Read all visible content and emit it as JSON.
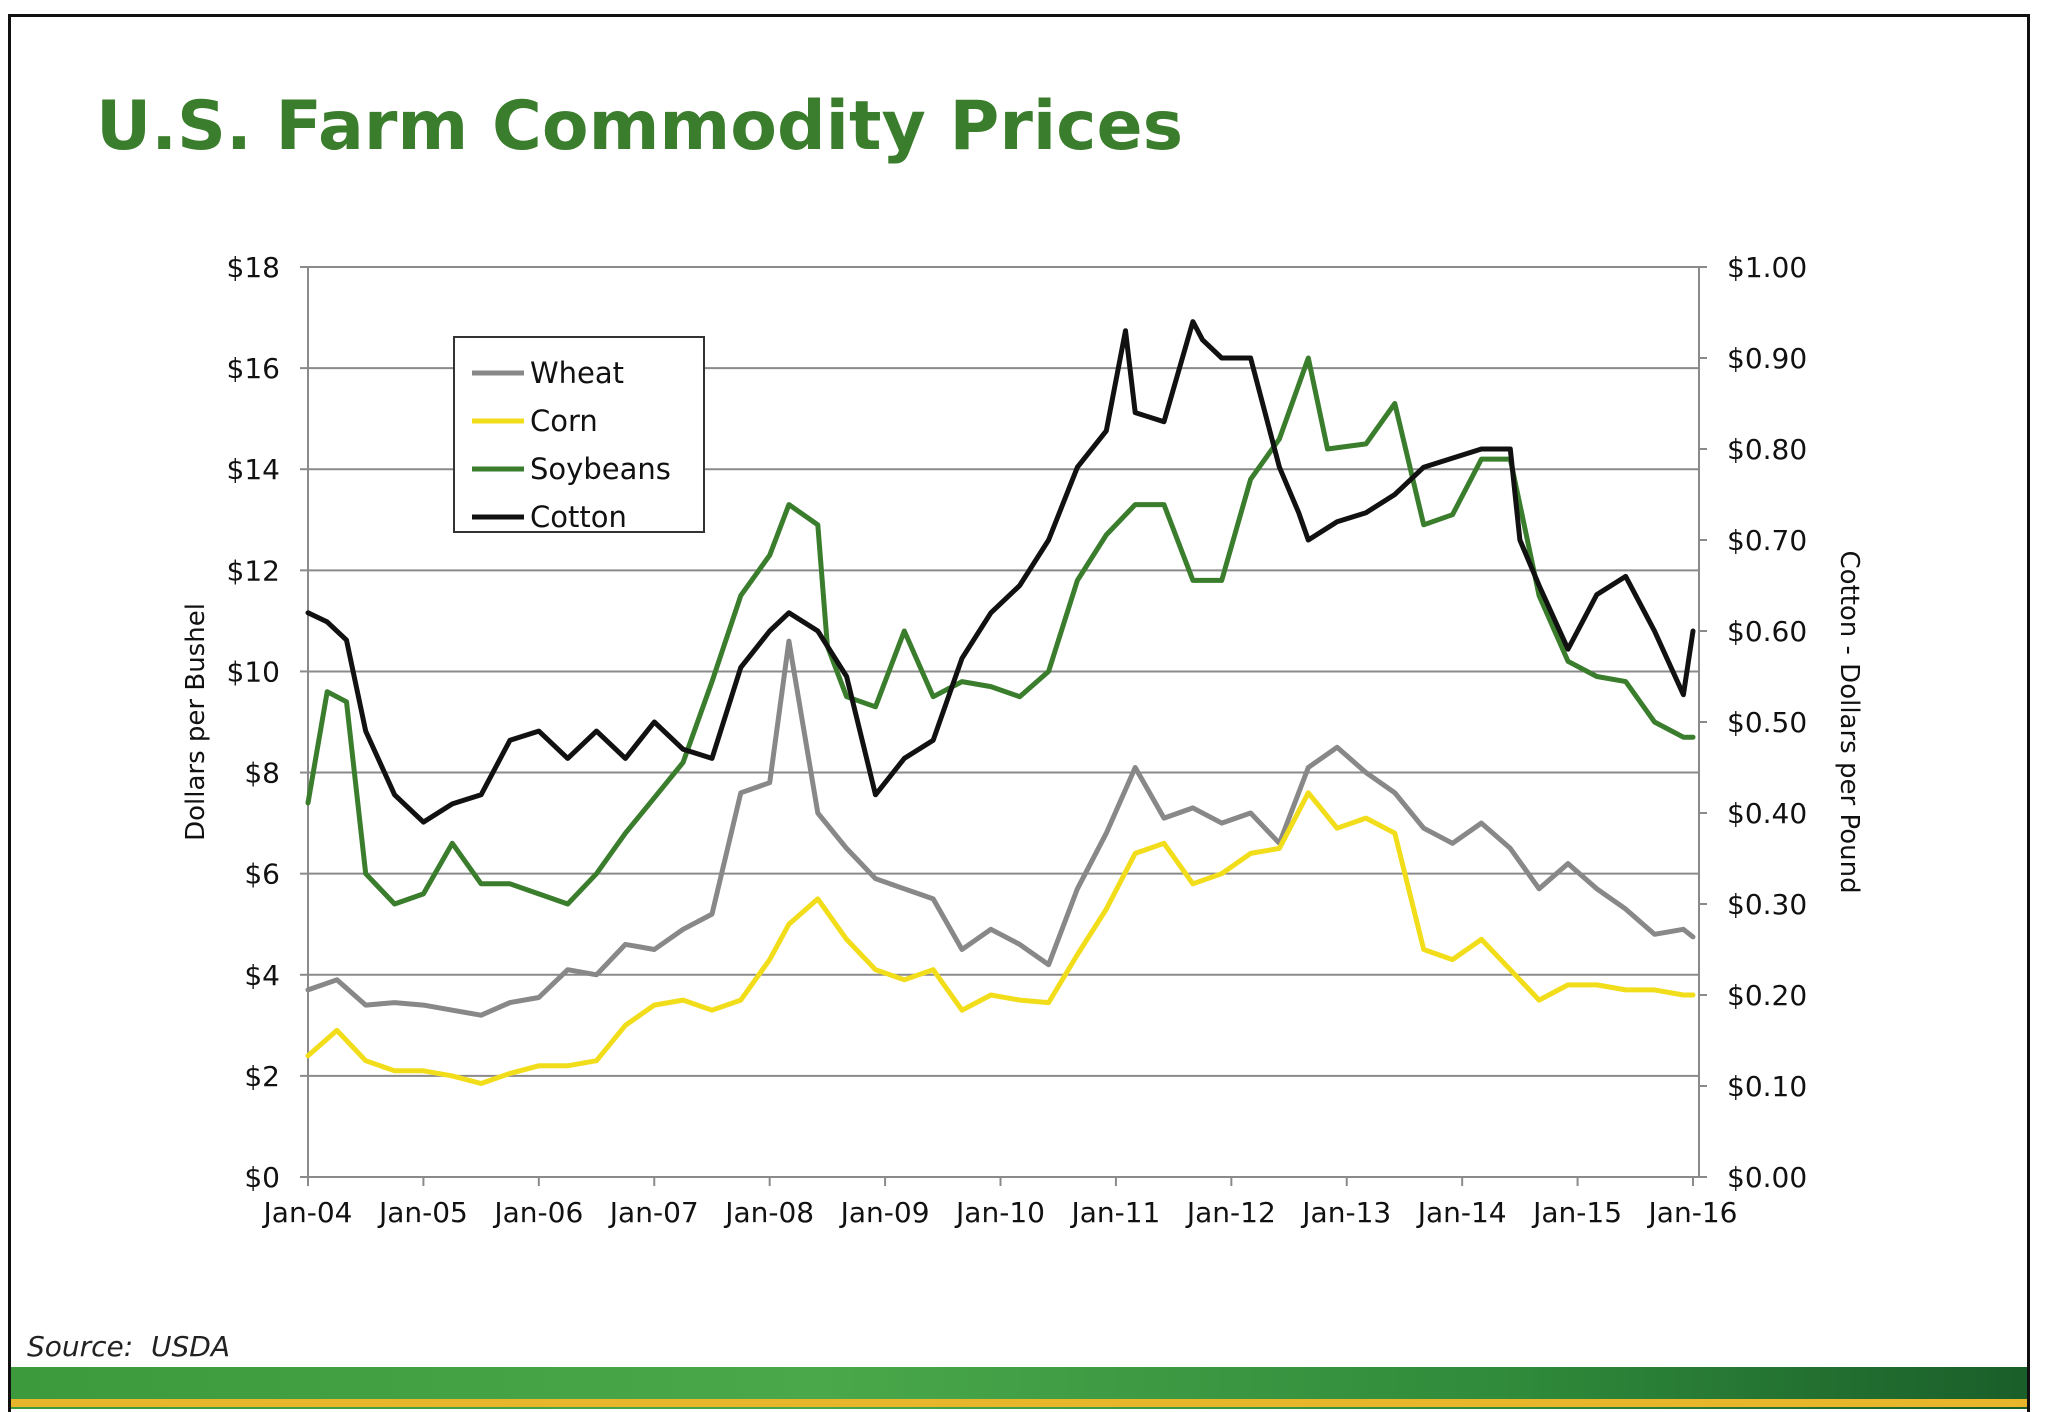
{
  "title": "U.S. Farm Commodity Prices",
  "source": "Source:  USDA",
  "colors": {
    "title": "#3a7d2c",
    "wheat": "#888888",
    "corn": "#f2dd1a",
    "soybeans": "#3a7d2c",
    "cotton": "#111111",
    "grid": "#888888"
  },
  "chart_data": {
    "type": "line",
    "title": "",
    "ylabel": "Dollars per Bushel",
    "y2label": "Cotton - Dollars per Pound",
    "ylim": [
      0,
      18
    ],
    "y2lim": [
      0,
      1.0
    ],
    "yticks": [
      "$0",
      "$2",
      "$4",
      "$6",
      "$8",
      "$10",
      "$12",
      "$14",
      "$16",
      "$18"
    ],
    "y2ticks": [
      "$0.00",
      "$0.10",
      "$0.20",
      "$0.30",
      "$0.40",
      "$0.50",
      "$0.60",
      "$0.70",
      "$0.80",
      "$0.90",
      "$1.00"
    ],
    "xticks": [
      "Jan-04",
      "Jan-05",
      "Jan-06",
      "Jan-07",
      "Jan-08",
      "Jan-09",
      "Jan-10",
      "Jan-11",
      "Jan-12",
      "Jan-13",
      "Jan-14",
      "Jan-15",
      "Jan-16"
    ],
    "xlim": [
      "2004-01",
      "2016-01"
    ],
    "grid": true,
    "legend_position": "top-left",
    "series": [
      {
        "name": "Wheat",
        "axis": "left",
        "color": "#888888",
        "x": [
          "2004-01",
          "2004-04",
          "2004-07",
          "2004-10",
          "2005-01",
          "2005-04",
          "2005-07",
          "2005-10",
          "2006-01",
          "2006-04",
          "2006-07",
          "2006-10",
          "2007-01",
          "2007-04",
          "2007-07",
          "2007-10",
          "2008-01",
          "2008-03",
          "2008-06",
          "2008-09",
          "2008-12",
          "2009-03",
          "2009-06",
          "2009-09",
          "2009-12",
          "2010-03",
          "2010-06",
          "2010-09",
          "2010-12",
          "2011-03",
          "2011-06",
          "2011-09",
          "2011-12",
          "2012-03",
          "2012-06",
          "2012-09",
          "2012-12",
          "2013-03",
          "2013-06",
          "2013-09",
          "2013-12",
          "2014-03",
          "2014-06",
          "2014-09",
          "2014-12",
          "2015-03",
          "2015-06",
          "2015-09",
          "2015-12",
          "2016-01"
        ],
        "values": [
          3.7,
          3.9,
          3.4,
          3.45,
          3.4,
          3.3,
          3.2,
          3.45,
          3.55,
          4.1,
          4.0,
          4.6,
          4.5,
          4.9,
          5.2,
          7.6,
          7.8,
          10.6,
          7.2,
          6.5,
          5.9,
          5.7,
          5.5,
          4.5,
          4.9,
          4.6,
          4.2,
          5.7,
          6.8,
          8.1,
          7.1,
          7.3,
          7.0,
          7.2,
          6.6,
          8.1,
          8.5,
          8.0,
          7.6,
          6.9,
          6.6,
          7.0,
          6.5,
          5.7,
          6.2,
          5.7,
          5.3,
          4.8,
          4.9,
          4.75
        ]
      },
      {
        "name": "Corn",
        "axis": "left",
        "color": "#f2dd1a",
        "x": [
          "2004-01",
          "2004-04",
          "2004-07",
          "2004-10",
          "2005-01",
          "2005-04",
          "2005-07",
          "2005-10",
          "2006-01",
          "2006-04",
          "2006-07",
          "2006-10",
          "2007-01",
          "2007-04",
          "2007-07",
          "2007-10",
          "2008-01",
          "2008-03",
          "2008-06",
          "2008-09",
          "2008-12",
          "2009-03",
          "2009-06",
          "2009-09",
          "2009-12",
          "2010-03",
          "2010-06",
          "2010-09",
          "2010-12",
          "2011-03",
          "2011-06",
          "2011-09",
          "2011-12",
          "2012-03",
          "2012-06",
          "2012-09",
          "2012-12",
          "2013-03",
          "2013-06",
          "2013-09",
          "2013-12",
          "2014-03",
          "2014-06",
          "2014-09",
          "2014-12",
          "2015-03",
          "2015-06",
          "2015-09",
          "2015-12",
          "2016-01"
        ],
        "values": [
          2.4,
          2.9,
          2.3,
          2.1,
          2.1,
          2.0,
          1.85,
          2.05,
          2.2,
          2.2,
          2.3,
          3.0,
          3.4,
          3.5,
          3.3,
          3.5,
          4.3,
          5.0,
          5.5,
          4.7,
          4.1,
          3.9,
          4.1,
          3.3,
          3.6,
          3.5,
          3.45,
          4.4,
          5.3,
          6.4,
          6.6,
          5.8,
          6.0,
          6.4,
          6.5,
          7.6,
          6.9,
          7.1,
          6.8,
          4.5,
          4.3,
          4.7,
          4.1,
          3.5,
          3.8,
          3.8,
          3.7,
          3.7,
          3.6,
          3.6
        ]
      },
      {
        "name": "Soybeans",
        "axis": "left",
        "color": "#3a7d2c",
        "x": [
          "2004-01",
          "2004-03",
          "2004-05",
          "2004-07",
          "2004-10",
          "2005-01",
          "2005-04",
          "2005-07",
          "2005-10",
          "2006-01",
          "2006-04",
          "2006-07",
          "2006-10",
          "2007-01",
          "2007-04",
          "2007-07",
          "2007-10",
          "2008-01",
          "2008-03",
          "2008-06",
          "2008-07",
          "2008-09",
          "2008-12",
          "2009-03",
          "2009-06",
          "2009-09",
          "2009-12",
          "2010-03",
          "2010-06",
          "2010-09",
          "2010-12",
          "2011-03",
          "2011-06",
          "2011-09",
          "2011-12",
          "2012-03",
          "2012-06",
          "2012-09",
          "2012-11",
          "2013-03",
          "2013-06",
          "2013-09",
          "2013-12",
          "2014-03",
          "2014-06",
          "2014-09",
          "2014-12",
          "2015-03",
          "2015-06",
          "2015-09",
          "2015-12",
          "2016-01"
        ],
        "values": [
          7.4,
          9.6,
          9.4,
          6.0,
          5.4,
          5.6,
          6.6,
          5.8,
          5.8,
          5.6,
          5.4,
          6.0,
          6.8,
          7.5,
          8.2,
          9.8,
          11.5,
          12.3,
          13.3,
          12.9,
          10.5,
          9.5,
          9.3,
          10.8,
          9.5,
          9.8,
          9.7,
          9.5,
          10.0,
          11.8,
          12.7,
          13.3,
          13.3,
          11.8,
          11.8,
          13.8,
          14.6,
          16.2,
          14.4,
          14.5,
          15.3,
          12.9,
          13.1,
          14.2,
          14.2,
          11.5,
          10.2,
          9.9,
          9.8,
          9.0,
          8.7,
          8.7
        ]
      },
      {
        "name": "Cotton",
        "axis": "right",
        "color": "#111111",
        "x": [
          "2004-01",
          "2004-03",
          "2004-05",
          "2004-07",
          "2004-10",
          "2005-01",
          "2005-04",
          "2005-07",
          "2005-10",
          "2006-01",
          "2006-04",
          "2006-07",
          "2006-10",
          "2007-01",
          "2007-04",
          "2007-07",
          "2007-10",
          "2008-01",
          "2008-03",
          "2008-06",
          "2008-09",
          "2008-12",
          "2009-03",
          "2009-06",
          "2009-09",
          "2009-12",
          "2010-03",
          "2010-06",
          "2010-09",
          "2010-12",
          "2011-02",
          "2011-03",
          "2011-06",
          "2011-09",
          "2011-10",
          "2011-12",
          "2012-03",
          "2012-06",
          "2012-08",
          "2012-09",
          "2012-12",
          "2013-03",
          "2013-06",
          "2013-09",
          "2013-12",
          "2014-03",
          "2014-06",
          "2014-07",
          "2014-09",
          "2014-12",
          "2015-03",
          "2015-06",
          "2015-09",
          "2015-12",
          "2016-01"
        ],
        "values": [
          0.62,
          0.61,
          0.59,
          0.49,
          0.42,
          0.39,
          0.41,
          0.42,
          0.48,
          0.49,
          0.46,
          0.49,
          0.46,
          0.5,
          0.47,
          0.46,
          0.56,
          0.6,
          0.62,
          0.6,
          0.55,
          0.42,
          0.46,
          0.48,
          0.57,
          0.62,
          0.65,
          0.7,
          0.78,
          0.82,
          0.93,
          0.84,
          0.83,
          0.94,
          0.92,
          0.9,
          0.9,
          0.78,
          0.73,
          0.7,
          0.72,
          0.73,
          0.75,
          0.78,
          0.79,
          0.8,
          0.8,
          0.7,
          0.65,
          0.58,
          0.64,
          0.66,
          0.6,
          0.53,
          0.6
        ]
      }
    ]
  }
}
